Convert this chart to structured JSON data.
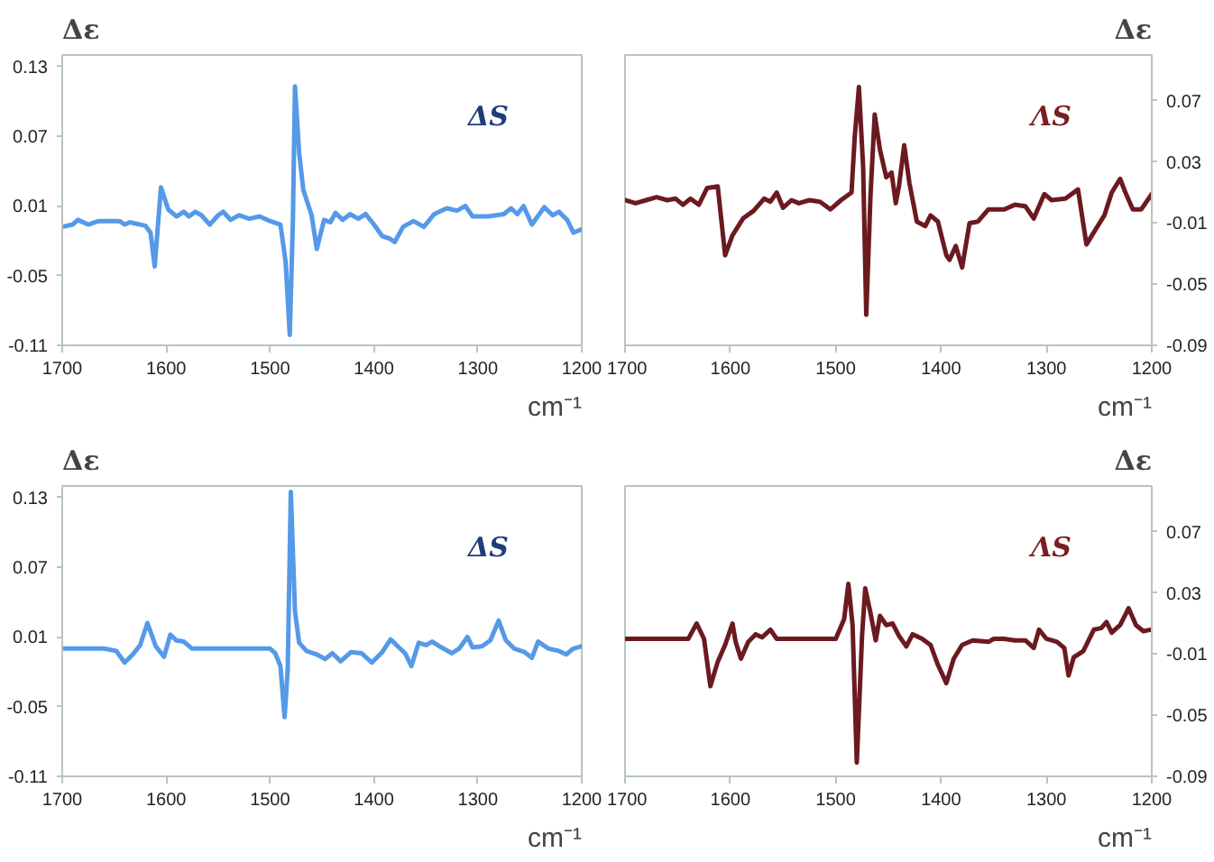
{
  "chart_data": [
    {
      "type": "line",
      "ylabel": "Δε",
      "xlabel": "cm⁻¹",
      "annotations": [
        "ΔS"
      ],
      "xlim": [
        1700,
        1200
      ],
      "xticks": [
        1700,
        1600,
        1500,
        1400,
        1300,
        1200
      ],
      "ylim": [
        -0.11,
        0.14
      ],
      "yticks": [
        -0.11,
        -0.05,
        0.01,
        0.07,
        0.13
      ],
      "series": [
        {
          "color": "#5599e8",
          "x": [
            1700,
            1690,
            1685,
            1675,
            1665,
            1645,
            1640,
            1635,
            1620,
            1615,
            1611,
            1605,
            1598,
            1590,
            1583,
            1578,
            1572,
            1566,
            1558,
            1550,
            1545,
            1538,
            1530,
            1520,
            1510,
            1500,
            1490,
            1485,
            1481,
            1478,
            1476,
            1472,
            1468,
            1460,
            1455,
            1448,
            1442,
            1437,
            1430,
            1423,
            1415,
            1408,
            1400,
            1392,
            1385,
            1380,
            1372,
            1362,
            1352,
            1342,
            1330,
            1320,
            1312,
            1305,
            1290,
            1275,
            1268,
            1262,
            1256,
            1248,
            1236,
            1228,
            1222,
            1214,
            1208,
            1200
          ],
          "values": [
            -0.008,
            -0.006,
            -0.002,
            -0.006,
            -0.003,
            -0.003,
            -0.006,
            -0.004,
            -0.007,
            -0.013,
            -0.042,
            0.026,
            0.007,
            0.001,
            0.005,
            0.001,
            0.005,
            0.002,
            -0.006,
            0.002,
            0.005,
            -0.002,
            0.002,
            -0.001,
            0.001,
            -0.003,
            -0.006,
            -0.038,
            -0.101,
            -0.003,
            0.113,
            0.056,
            0.024,
            0.002,
            -0.027,
            -0.002,
            -0.004,
            0.004,
            -0.002,
            0.003,
            -0.001,
            0.003,
            -0.006,
            -0.016,
            -0.018,
            -0.021,
            -0.008,
            -0.003,
            -0.008,
            0.003,
            0.008,
            0.006,
            0.01,
            0.001,
            0.001,
            0.003,
            0.008,
            0.003,
            0.01,
            -0.006,
            0.009,
            0.002,
            0.005,
            -0.002,
            -0.013,
            -0.01
          ]
        }
      ]
    },
    {
      "type": "line",
      "y2label": "Δε",
      "xlabel": "cm⁻¹",
      "annotations": [
        "ΛS"
      ],
      "xlim": [
        1700,
        1200
      ],
      "xticks": [
        1700,
        1600,
        1500,
        1400,
        1300,
        1200
      ],
      "y2lim": [
        -0.09,
        0.1
      ],
      "y2ticks": [
        -0.09,
        -0.05,
        -0.01,
        0.03,
        0.07
      ],
      "series": [
        {
          "color": "#6b1a1f",
          "axis": "y2",
          "x": [
            1700,
            1690,
            1680,
            1670,
            1660,
            1652,
            1645,
            1638,
            1630,
            1622,
            1612,
            1605,
            1598,
            1588,
            1578,
            1568,
            1562,
            1556,
            1550,
            1542,
            1535,
            1525,
            1515,
            1505,
            1495,
            1485,
            1482,
            1478,
            1474,
            1471,
            1467,
            1463,
            1458,
            1452,
            1447,
            1443,
            1440,
            1435,
            1430,
            1423,
            1415,
            1410,
            1403,
            1395,
            1392,
            1386,
            1380,
            1373,
            1365,
            1355,
            1340,
            1330,
            1320,
            1312,
            1302,
            1295,
            1282,
            1270,
            1262,
            1255,
            1245,
            1238,
            1230,
            1225,
            1218,
            1210,
            1200
          ],
          "values": [
            0.005,
            0.003,
            0.005,
            0.007,
            0.005,
            0.006,
            0.002,
            0.006,
            0.002,
            0.013,
            0.014,
            -0.031,
            -0.018,
            -0.007,
            -0.002,
            0.006,
            0.004,
            0.01,
            0.0,
            0.005,
            0.003,
            0.005,
            0.004,
            -0.001,
            0.005,
            0.01,
            0.046,
            0.079,
            0.027,
            -0.07,
            0.008,
            0.061,
            0.038,
            0.02,
            0.023,
            0.003,
            0.014,
            0.041,
            0.016,
            -0.009,
            -0.012,
            -0.005,
            -0.009,
            -0.031,
            -0.034,
            -0.025,
            -0.039,
            -0.01,
            -0.009,
            -0.001,
            -0.001,
            0.002,
            0.001,
            -0.007,
            0.009,
            0.005,
            0.006,
            0.012,
            -0.024,
            -0.016,
            -0.005,
            0.01,
            0.019,
            0.01,
            -0.001,
            -0.001,
            0.009
          ]
        }
      ]
    },
    {
      "type": "line",
      "ylabel": "Δε",
      "xlabel": "cm⁻¹",
      "annotations": [
        "ΔS"
      ],
      "xlim": [
        1700,
        1200
      ],
      "xticks": [
        1700,
        1600,
        1500,
        1400,
        1300,
        1200
      ],
      "ylim": [
        -0.11,
        0.14
      ],
      "yticks": [
        -0.11,
        -0.05,
        0.01,
        0.07,
        0.13
      ],
      "series": [
        {
          "color": "#5599e8",
          "x": [
            1700,
            1660,
            1648,
            1640,
            1632,
            1625,
            1618,
            1610,
            1602,
            1596,
            1590,
            1583,
            1575,
            1565,
            1500,
            1495,
            1490,
            1486,
            1483,
            1480,
            1476,
            1472,
            1465,
            1455,
            1447,
            1440,
            1432,
            1422,
            1412,
            1402,
            1392,
            1384,
            1376,
            1370,
            1364,
            1357,
            1350,
            1344,
            1335,
            1325,
            1318,
            1310,
            1305,
            1296,
            1288,
            1280,
            1273,
            1265,
            1255,
            1248,
            1242,
            1232,
            1222,
            1215,
            1208,
            1200
          ],
          "values": [
            0.0,
            0.0,
            -0.002,
            -0.012,
            -0.005,
            0.003,
            0.022,
            0.002,
            -0.007,
            0.012,
            0.007,
            0.006,
            0.0,
            0.0,
            0.0,
            -0.004,
            -0.015,
            -0.059,
            -0.018,
            0.135,
            0.032,
            0.005,
            -0.002,
            -0.005,
            -0.009,
            -0.004,
            -0.011,
            -0.003,
            -0.004,
            -0.012,
            -0.003,
            0.008,
            0.001,
            -0.004,
            -0.015,
            0.005,
            0.003,
            0.006,
            0.001,
            -0.004,
            0.0,
            0.01,
            0.001,
            0.002,
            0.007,
            0.024,
            0.007,
            0.0,
            -0.003,
            -0.008,
            0.006,
            0.0,
            -0.002,
            -0.005,
            0.0,
            0.002
          ]
        }
      ]
    },
    {
      "type": "line",
      "y2label": "Δε",
      "xlabel": "cm⁻¹",
      "annotations": [
        "ΛS"
      ],
      "xlim": [
        1700,
        1200
      ],
      "xticks": [
        1700,
        1600,
        1500,
        1400,
        1300,
        1200
      ],
      "y2lim": [
        -0.09,
        0.1
      ],
      "y2ticks": [
        -0.09,
        -0.05,
        -0.01,
        0.03,
        0.07
      ],
      "series": [
        {
          "color": "#6b1a1f",
          "axis": "y2",
          "x": [
            1700,
            1640,
            1632,
            1625,
            1619,
            1612,
            1605,
            1598,
            1595,
            1590,
            1583,
            1576,
            1570,
            1562,
            1556,
            1500,
            1492,
            1488,
            1484,
            1480,
            1475,
            1472,
            1467,
            1462,
            1458,
            1452,
            1446,
            1440,
            1433,
            1427,
            1418,
            1410,
            1403,
            1395,
            1388,
            1380,
            1370,
            1355,
            1350,
            1340,
            1330,
            1320,
            1312,
            1307,
            1300,
            1290,
            1283,
            1279,
            1274,
            1265,
            1255,
            1248,
            1243,
            1238,
            1230,
            1222,
            1215,
            1208,
            1200
          ],
          "values": [
            0.0,
            0.0,
            0.01,
            0.0,
            -0.031,
            -0.015,
            -0.004,
            0.01,
            -0.002,
            -0.013,
            -0.002,
            0.003,
            0.001,
            0.006,
            0.0,
            0.0,
            0.013,
            0.036,
            0.009,
            -0.081,
            0.002,
            0.033,
            0.017,
            -0.001,
            0.015,
            0.009,
            0.01,
            0.002,
            -0.005,
            0.003,
            0.0,
            -0.004,
            -0.017,
            -0.029,
            -0.013,
            -0.004,
            -0.001,
            -0.002,
            0.0,
            0.0,
            -0.001,
            -0.001,
            -0.006,
            0.006,
            0.0,
            -0.002,
            -0.006,
            -0.024,
            -0.012,
            -0.008,
            0.006,
            0.007,
            0.011,
            0.004,
            0.009,
            0.02,
            0.009,
            0.005,
            0.006
          ]
        }
      ]
    }
  ]
}
